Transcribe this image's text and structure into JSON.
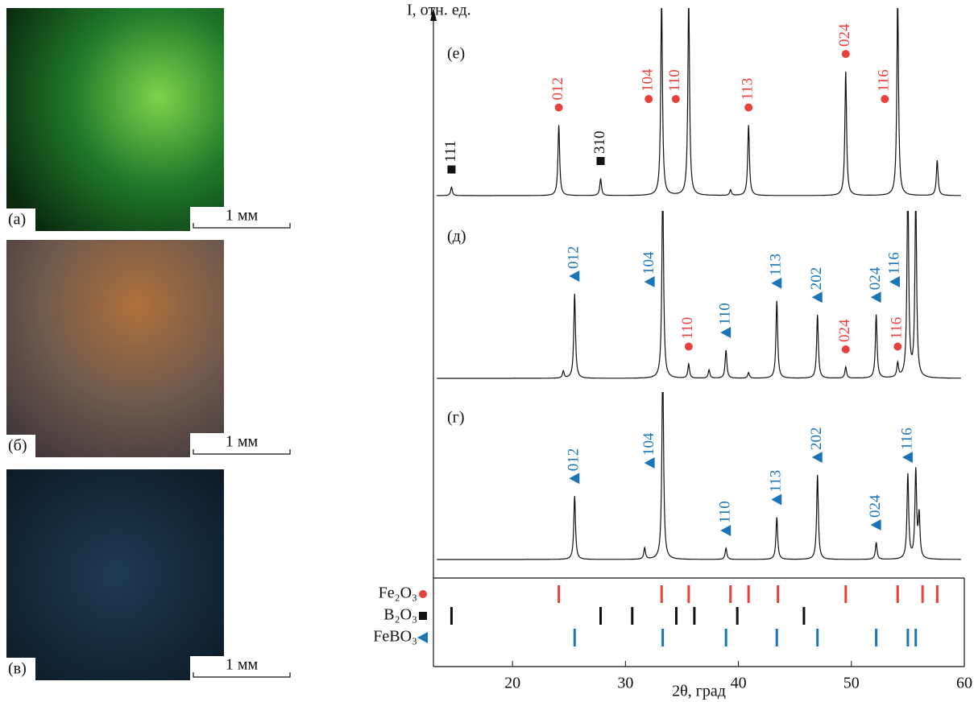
{
  "photos": [
    {
      "label": "(а)",
      "scale": "1 мм"
    },
    {
      "label": "(б)",
      "scale": "1 мм"
    },
    {
      "label": "(в)",
      "scale": "1 мм"
    }
  ],
  "chart_data": {
    "type": "xrd",
    "ylabel": "I, отн. ед.",
    "xlabel": "2θ, град",
    "xlim": [
      13,
      60
    ],
    "xticks": [
      20,
      30,
      40,
      50,
      60
    ],
    "reference": [
      {
        "name": "Fe₂O₃",
        "color": "#e8403c",
        "marker": "circle",
        "values": [
          24.1,
          33.2,
          35.6,
          39.3,
          40.9,
          43.5,
          49.5,
          54.1,
          56.3,
          57.6
        ]
      },
      {
        "name": "B₂O₃",
        "color": "#111111",
        "marker": "square",
        "values": [
          14.6,
          27.8,
          30.6,
          34.5,
          36.1,
          39.9,
          45.8
        ]
      },
      {
        "name": "FeBO₃",
        "color": "#1a74b8",
        "marker": "triangle",
        "values": [
          25.5,
          33.3,
          38.9,
          43.4,
          47.0,
          52.2,
          55.0,
          55.7
        ]
      }
    ],
    "panels": [
      {
        "label": "(е)",
        "peaks": {
          "x": [
            14.6,
            24.1,
            27.8,
            33.2,
            35.6,
            39.3,
            40.9,
            49.5,
            54.1,
            57.6
          ],
          "values": [
            0.06,
            0.5,
            0.12,
            1.4,
            1.4,
            0.04,
            0.5,
            0.88,
            1.4,
            0.25
          ]
        },
        "annotations": [
          {
            "text": "111",
            "x": 14.6,
            "series": 1
          },
          {
            "text": "012",
            "x": 24.1,
            "series": 0
          },
          {
            "text": "310",
            "x": 27.8,
            "series": 1
          },
          {
            "text": "104",
            "x": 33.2,
            "series": 0
          },
          {
            "text": "110",
            "x": 35.6,
            "series": 0
          },
          {
            "text": "113",
            "x": 40.9,
            "series": 0
          },
          {
            "text": "024",
            "x": 49.5,
            "series": 0
          },
          {
            "text": "116",
            "x": 54.1,
            "series": 0
          }
        ]
      },
      {
        "label": "(д)",
        "peaks": {
          "x": [
            24.5,
            25.5,
            33.3,
            35.6,
            37.4,
            38.9,
            40.9,
            43.4,
            47.0,
            49.5,
            52.2,
            54.1,
            55.0,
            55.7
          ],
          "values": [
            0.05,
            0.6,
            1.4,
            0.1,
            0.06,
            0.2,
            0.04,
            0.55,
            0.45,
            0.08,
            0.45,
            0.1,
            1.4,
            1.3
          ]
        },
        "annotations": [
          {
            "text": "012",
            "x": 25.5,
            "series": 2
          },
          {
            "text": "104",
            "x": 33.3,
            "series": 2
          },
          {
            "text": "110",
            "x": 35.6,
            "series": 0
          },
          {
            "text": "110",
            "x": 38.9,
            "series": 2
          },
          {
            "text": "113",
            "x": 43.4,
            "series": 2
          },
          {
            "text": "202",
            "x": 47.0,
            "series": 2
          },
          {
            "text": "024",
            "x": 49.5,
            "series": 0
          },
          {
            "text": "024",
            "x": 52.2,
            "series": 2
          },
          {
            "text": "116",
            "x": 54.1,
            "series": 0
          },
          {
            "text": "116",
            "x": 55.0,
            "series": 2
          }
        ]
      },
      {
        "label": "(г)",
        "peaks": {
          "x": [
            25.5,
            31.7,
            33.3,
            38.9,
            43.4,
            47.0,
            52.2,
            55.0,
            55.7,
            56.0
          ],
          "values": [
            0.45,
            0.08,
            1.4,
            0.08,
            0.3,
            0.6,
            0.12,
            0.6,
            0.62,
            0.3
          ]
        },
        "annotations": [
          {
            "text": "012",
            "x": 25.5,
            "series": 2
          },
          {
            "text": "104",
            "x": 33.3,
            "series": 2
          },
          {
            "text": "110",
            "x": 38.9,
            "series": 2
          },
          {
            "text": "113",
            "x": 43.4,
            "series": 2
          },
          {
            "text": "202",
            "x": 47.0,
            "series": 2
          },
          {
            "text": "024",
            "x": 52.2,
            "series": 2
          },
          {
            "text": "116",
            "x": 55.0,
            "series": 2
          }
        ]
      }
    ]
  }
}
